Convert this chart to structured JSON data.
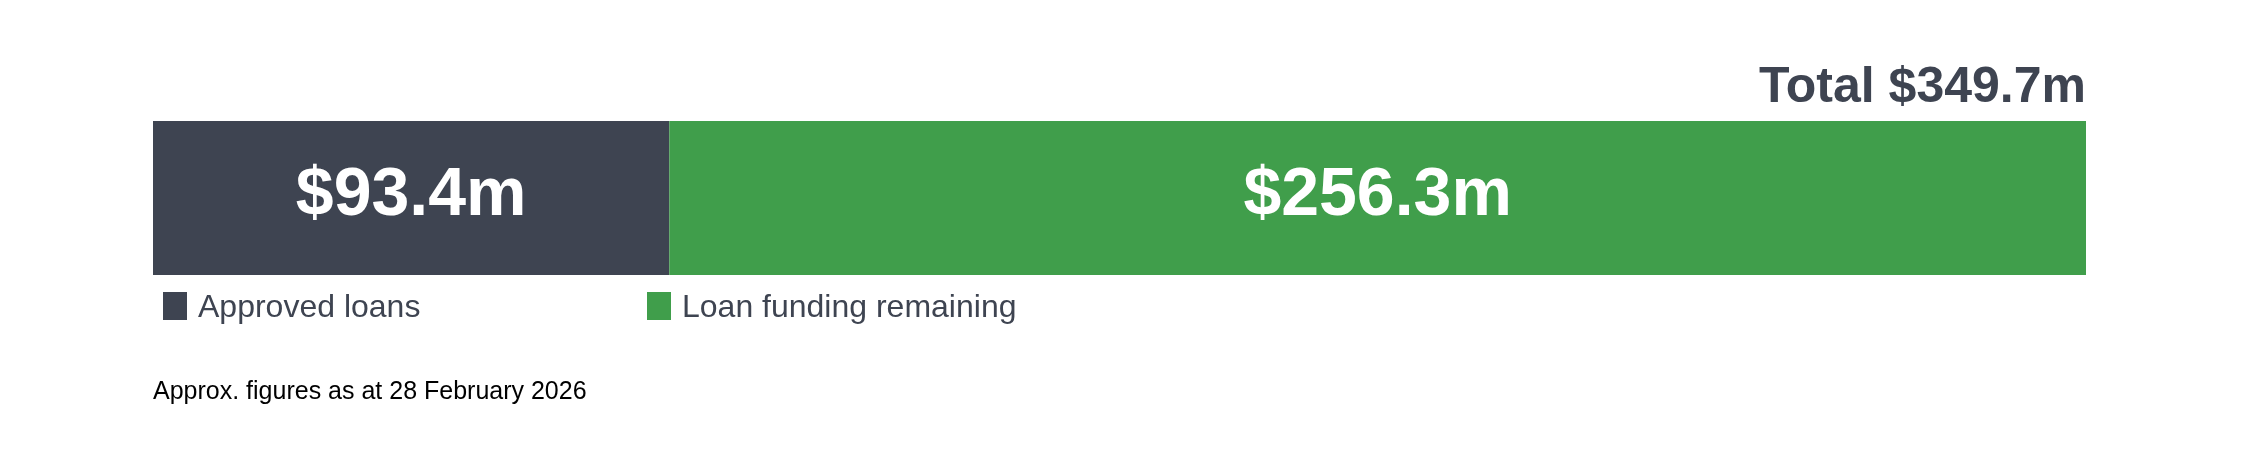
{
  "chart_data": {
    "type": "bar",
    "orientation": "horizontal",
    "stacked": true,
    "categories": [
      null
    ],
    "series": [
      {
        "name": "Approved loans",
        "color": "#3e4451",
        "values": [
          93.4
        ],
        "value_labels": [
          "$93.4m"
        ]
      },
      {
        "name": "Loan funding remaining",
        "color": "#409e4b",
        "values": [
          256.3
        ],
        "value_labels": [
          "$256.3m"
        ]
      }
    ],
    "totals": [
      "Total $349.7m"
    ],
    "xlim": [
      0,
      349.7
    ],
    "tick_labels": false,
    "legend": "bottom",
    "annotations": [
      "Approx. figures as at 28 February 2026"
    ]
  }
}
